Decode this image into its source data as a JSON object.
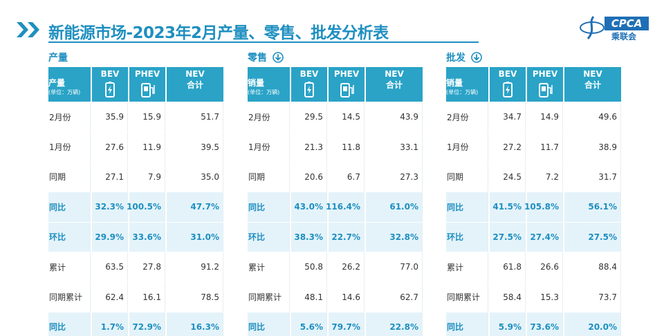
{
  "header": {
    "title": "新能源市场-2023年2月产量、零售、批发分析表",
    "logo_text": "CPCA",
    "logo_subtext": "乘联会"
  },
  "tables": [
    {
      "label": "产量",
      "unit_title": "产量",
      "unit_note": "(单位：万辆)",
      "columns": [
        "BEV",
        "PHEV",
        "NEV"
      ],
      "total_label": "合计",
      "rows": [
        {
          "label": "2月份",
          "cells": [
            "35.9",
            "15.9",
            "51.7"
          ]
        },
        {
          "label": "1月份",
          "cells": [
            "27.6",
            "11.9",
            "39.5"
          ]
        },
        {
          "label": "同期",
          "cells": [
            "27.1",
            "7.9",
            "35.0"
          ]
        },
        {
          "label": "同比",
          "cells": [
            "32.3%",
            "100.5%",
            "47.7%"
          ]
        },
        {
          "label": "环比",
          "cells": [
            "29.9%",
            "33.6%",
            "31.0%"
          ]
        },
        {
          "label": "累计",
          "cells": [
            "63.5",
            "27.8",
            "91.2"
          ]
        },
        {
          "label": "同期累计",
          "cells": [
            "62.4",
            "16.1",
            "78.5"
          ]
        },
        {
          "label": "同比",
          "cells": [
            "1.7%",
            "72.9%",
            "16.3%"
          ]
        }
      ]
    },
    {
      "label": "零售",
      "unit_title": "销量",
      "unit_note": "(单位：万辆)",
      "columns": [
        "BEV",
        "PHEV",
        "NEV"
      ],
      "total_label": "合计",
      "rows": [
        {
          "label": "2月份",
          "cells": [
            "29.5",
            "14.5",
            "43.9"
          ]
        },
        {
          "label": "1月份",
          "cells": [
            "21.3",
            "11.8",
            "33.1"
          ]
        },
        {
          "label": "同期",
          "cells": [
            "20.6",
            "6.7",
            "27.3"
          ]
        },
        {
          "label": "同比",
          "cells": [
            "43.0%",
            "116.4%",
            "61.0%"
          ]
        },
        {
          "label": "环比",
          "cells": [
            "38.3%",
            "22.7%",
            "32.8%"
          ]
        },
        {
          "label": "累计",
          "cells": [
            "50.8",
            "26.2",
            "77.0"
          ]
        },
        {
          "label": "同期累计",
          "cells": [
            "48.1",
            "14.6",
            "62.7"
          ]
        },
        {
          "label": "同比",
          "cells": [
            "5.6%",
            "79.7%",
            "22.8%"
          ]
        }
      ]
    },
    {
      "label": "批发",
      "unit_title": "销量",
      "unit_note": "(单位：万辆)",
      "columns": [
        "BEV",
        "PHEV",
        "NEV"
      ],
      "total_label": "合计",
      "rows": [
        {
          "label": "2月份",
          "cells": [
            "34.7",
            "14.9",
            "49.6"
          ]
        },
        {
          "label": "1月份",
          "cells": [
            "27.2",
            "11.7",
            "38.9"
          ]
        },
        {
          "label": "同期",
          "cells": [
            "24.5",
            "7.2",
            "31.7"
          ]
        },
        {
          "label": "同比",
          "cells": [
            "41.5%",
            "105.8%",
            "56.1%"
          ]
        },
        {
          "label": "环比",
          "cells": [
            "27.5%",
            "27.4%",
            "27.5%"
          ]
        },
        {
          "label": "累计",
          "cells": [
            "61.8",
            "26.6",
            "88.4"
          ]
        },
        {
          "label": "同期累计",
          "cells": [
            "58.4",
            "15.3",
            "73.7"
          ]
        },
        {
          "label": "同比",
          "cells": [
            "5.9%",
            "73.6%",
            "20.0%"
          ]
        }
      ]
    }
  ]
}
